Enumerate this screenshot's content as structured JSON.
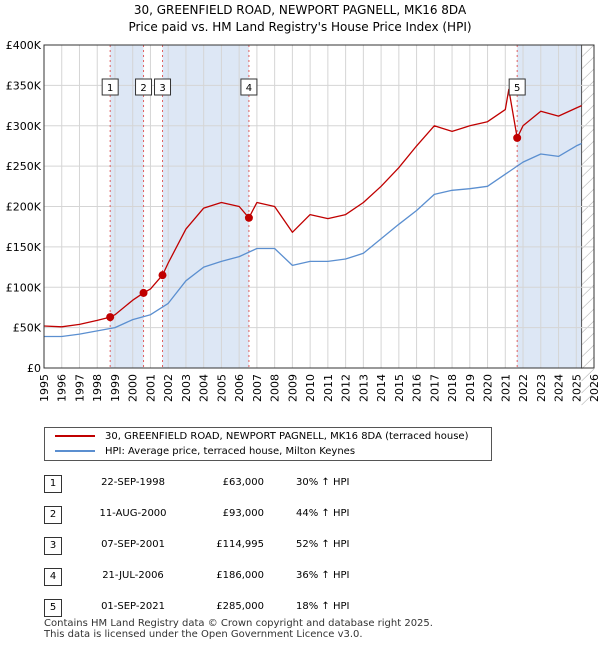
{
  "title_line1": "30, GREENFIELD ROAD, NEWPORT PAGNELL, MK16 8DA",
  "title_line2": "Price paid vs. HM Land Registry's House Price Index (HPI)",
  "colors": {
    "property": "#c00000",
    "hpi": "#5b8fd0",
    "shade": "#dde7f5",
    "vline": "#e06060"
  },
  "chart_data": {
    "type": "line",
    "x_ticks": [
      "1995",
      "1996",
      "1997",
      "1998",
      "1999",
      "2000",
      "2001",
      "2002",
      "2003",
      "2004",
      "2005",
      "2006",
      "2007",
      "2008",
      "2009",
      "2010",
      "2011",
      "2012",
      "2013",
      "2014",
      "2015",
      "2016",
      "2017",
      "2018",
      "2019",
      "2020",
      "2021",
      "2022",
      "2023",
      "2024",
      "2025",
      "2026"
    ],
    "y_ticks": [
      "£0",
      "£50K",
      "£100K",
      "£150K",
      "£200K",
      "£250K",
      "£300K",
      "£350K",
      "£400K"
    ],
    "xlim": [
      1995,
      2026
    ],
    "ylim": [
      0,
      400000
    ],
    "series": [
      {
        "name": "30, GREENFIELD ROAD, NEWPORT PAGNELL, MK16 8DA (terraced house)",
        "points": [
          [
            1995,
            52000
          ],
          [
            1996,
            51000
          ],
          [
            1997,
            54000
          ],
          [
            1998,
            59000
          ],
          [
            1998.73,
            63000
          ],
          [
            1999,
            66000
          ],
          [
            2000,
            84000
          ],
          [
            2000.61,
            93000
          ],
          [
            2001,
            98000
          ],
          [
            2001.68,
            114995
          ],
          [
            2002,
            130000
          ],
          [
            2003,
            172000
          ],
          [
            2004,
            198000
          ],
          [
            2005,
            205000
          ],
          [
            2006,
            200000
          ],
          [
            2006.55,
            186000
          ],
          [
            2007,
            205000
          ],
          [
            2008,
            200000
          ],
          [
            2009,
            168000
          ],
          [
            2010,
            190000
          ],
          [
            2011,
            185000
          ],
          [
            2012,
            190000
          ],
          [
            2013,
            205000
          ],
          [
            2014,
            225000
          ],
          [
            2015,
            248000
          ],
          [
            2016,
            275000
          ],
          [
            2017,
            300000
          ],
          [
            2018,
            293000
          ],
          [
            2019,
            300000
          ],
          [
            2020,
            305000
          ],
          [
            2021,
            320000
          ],
          [
            2021.2,
            345000
          ],
          [
            2021.67,
            285000
          ],
          [
            2022,
            300000
          ],
          [
            2023,
            318000
          ],
          [
            2024,
            312000
          ],
          [
            2025,
            322000
          ],
          [
            2025.3,
            325000
          ]
        ]
      },
      {
        "name": "HPI: Average price, terraced house, Milton Keynes",
        "points": [
          [
            1995,
            39000
          ],
          [
            1996,
            39000
          ],
          [
            1997,
            42000
          ],
          [
            1998,
            46000
          ],
          [
            1999,
            50000
          ],
          [
            2000,
            60000
          ],
          [
            2001,
            66000
          ],
          [
            2002,
            80000
          ],
          [
            2003,
            108000
          ],
          [
            2004,
            125000
          ],
          [
            2005,
            132000
          ],
          [
            2006,
            138000
          ],
          [
            2007,
            148000
          ],
          [
            2008,
            148000
          ],
          [
            2009,
            127000
          ],
          [
            2010,
            132000
          ],
          [
            2011,
            132000
          ],
          [
            2012,
            135000
          ],
          [
            2013,
            142000
          ],
          [
            2014,
            160000
          ],
          [
            2015,
            178000
          ],
          [
            2016,
            195000
          ],
          [
            2017,
            215000
          ],
          [
            2018,
            220000
          ],
          [
            2019,
            222000
          ],
          [
            2020,
            225000
          ],
          [
            2021,
            240000
          ],
          [
            2022,
            255000
          ],
          [
            2023,
            265000
          ],
          [
            2024,
            262000
          ],
          [
            2025,
            275000
          ],
          [
            2025.3,
            278000
          ]
        ]
      }
    ],
    "transactions": [
      {
        "num": "1",
        "date": "22-SEP-1998",
        "price": "£63,000",
        "hpi": "30% ↑ HPI",
        "x": 1998.73,
        "y": 63000
      },
      {
        "num": "2",
        "date": "11-AUG-2000",
        "price": "£93,000",
        "hpi": "44% ↑ HPI",
        "x": 2000.61,
        "y": 93000
      },
      {
        "num": "3",
        "date": "07-SEP-2001",
        "price": "£114,995",
        "hpi": "52% ↑ HPI",
        "x": 2001.68,
        "y": 114995
      },
      {
        "num": "4",
        "date": "21-JUL-2006",
        "price": "£186,000",
        "hpi": "36% ↑ HPI",
        "x": 2006.55,
        "y": 186000
      },
      {
        "num": "5",
        "date": "01-SEP-2021",
        "price": "£285,000",
        "hpi": "18% ↑ HPI",
        "x": 2021.67,
        "y": 285000
      }
    ],
    "shaded_ranges": [
      [
        1998.73,
        2000.61
      ],
      [
        2001.68,
        2006.55
      ],
      [
        2021.67,
        2025.3
      ]
    ]
  },
  "legend": {
    "property_label": "30, GREENFIELD ROAD, NEWPORT PAGNELL, MK16 8DA (terraced house)",
    "hpi_label": "HPI: Average price, terraced house, Milton Keynes"
  },
  "footer": "Contains HM Land Registry data © Crown copyright and database right 2025.\nThis data is licensed under the Open Government Licence v3.0."
}
